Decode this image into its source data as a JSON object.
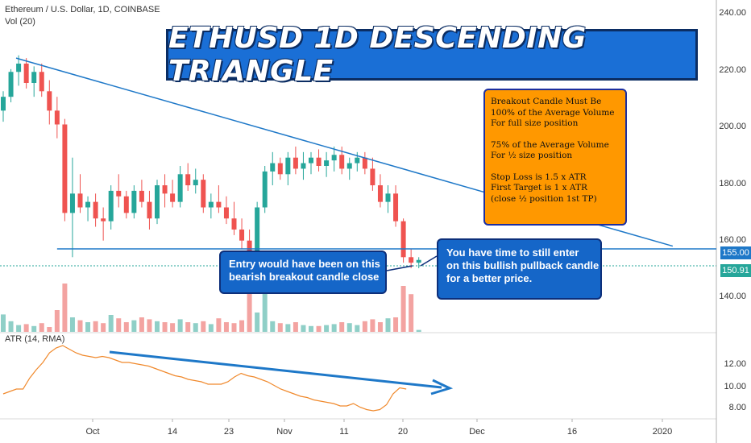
{
  "header": {
    "symbol_line": "Ethereum / U.S. Dollar, 1D, COINBASE",
    "volume_label": "Vol (20)"
  },
  "banner": {
    "title": "ETHUSD 1D DESCENDING TRIANGLE"
  },
  "note_orange": {
    "lines_a": [
      "Breakout Candle Must Be",
      "100% of the Average Volume",
      "For full size position"
    ],
    "lines_b": [
      "75% of the Average Volume",
      "For ½ size position"
    ],
    "lines_c": [
      "Stop Loss is 1.5 x ATR",
      "First Target is 1 x ATR",
      "(close ½ position 1st TP)"
    ]
  },
  "note_entry": {
    "lines": [
      "Entry would have been on this",
      "bearish breakout candle close"
    ]
  },
  "note_pullback": {
    "lines": [
      "You have time to still enter",
      "on this bullish pullback candle",
      "for a better price."
    ]
  },
  "atr": {
    "title": "ATR (14, RMA)",
    "y_ticks": [
      "12.00",
      "10.00",
      "8.00"
    ],
    "values": [
      9.2,
      9.4,
      9.6,
      9.6,
      10.5,
      11.2,
      11.8,
      12.6,
      13.0,
      13.2,
      12.9,
      12.6,
      12.4,
      12.3,
      12.2,
      12.3,
      12.2,
      12.0,
      11.8,
      11.8,
      11.7,
      11.6,
      11.5,
      11.3,
      11.1,
      10.9,
      10.7,
      10.6,
      10.4,
      10.3,
      10.2,
      10.0,
      10.0,
      10.0,
      10.2,
      10.6,
      10.9,
      10.7,
      10.6,
      10.4,
      10.2,
      9.9,
      9.6,
      9.4,
      9.2,
      9.0,
      8.9,
      8.7,
      8.6,
      8.5,
      8.4,
      8.2,
      8.2,
      8.4,
      8.1,
      7.9,
      7.8,
      7.9,
      8.3,
      9.2,
      9.7,
      9.6
    ]
  },
  "axis": {
    "y_ticks": [
      "240.00",
      "220.00",
      "200.00",
      "180.00",
      "160.00",
      "140.00"
    ],
    "x_ticks": [
      "Oct",
      "14",
      "23",
      "Nov",
      "11",
      "20",
      "Dec",
      "16",
      "2020"
    ]
  },
  "price_tags": {
    "resistance": "155.00",
    "last": "150.91"
  },
  "colors": {
    "up": "#26a69a",
    "down": "#ef5350",
    "vol_up": "#8fcfc7",
    "vol_down": "#f3a3a1",
    "line": "#1e78c8",
    "atr": "#f0892c"
  },
  "chart_data": {
    "type": "candlestick",
    "ylim": [
      125,
      245
    ],
    "ohlc": [
      [
        205,
        212,
        201,
        210
      ],
      [
        210,
        220,
        208,
        219
      ],
      [
        219,
        225,
        214,
        222
      ],
      [
        222,
        224,
        213,
        215
      ],
      [
        215,
        221,
        210,
        219
      ],
      [
        219,
        222,
        210,
        212
      ],
      [
        212,
        216,
        200,
        205
      ],
      [
        205,
        210,
        195,
        200
      ],
      [
        200,
        202,
        165,
        168
      ],
      [
        168,
        188,
        152,
        175
      ],
      [
        175,
        182,
        168,
        170
      ],
      [
        170,
        174,
        165,
        172
      ],
      [
        172,
        175,
        163,
        166
      ],
      [
        166,
        170,
        158,
        165
      ],
      [
        165,
        178,
        162,
        176
      ],
      [
        176,
        182,
        170,
        174
      ],
      [
        174,
        176,
        166,
        168
      ],
      [
        168,
        178,
        166,
        176
      ],
      [
        176,
        180,
        170,
        172
      ],
      [
        172,
        176,
        162,
        166
      ],
      [
        166,
        180,
        164,
        178
      ],
      [
        178,
        182,
        170,
        175
      ],
      [
        175,
        180,
        170,
        172
      ],
      [
        172,
        185,
        170,
        182
      ],
      [
        182,
        186,
        176,
        178
      ],
      [
        178,
        184,
        175,
        180
      ],
      [
        180,
        182,
        168,
        170
      ],
      [
        170,
        175,
        166,
        172
      ],
      [
        172,
        178,
        168,
        170
      ],
      [
        170,
        174,
        164,
        166
      ],
      [
        166,
        172,
        160,
        162
      ],
      [
        162,
        166,
        155,
        158
      ],
      [
        158,
        162,
        145,
        150
      ],
      [
        150,
        172,
        147,
        170
      ],
      [
        170,
        185,
        168,
        183
      ],
      [
        183,
        190,
        178,
        186
      ],
      [
        186,
        188,
        180,
        182
      ],
      [
        182,
        190,
        178,
        188
      ],
      [
        188,
        192,
        182,
        184
      ],
      [
        184,
        190,
        180,
        186
      ],
      [
        186,
        190,
        182,
        188
      ],
      [
        188,
        191,
        183,
        185
      ],
      [
        185,
        190,
        181,
        187
      ],
      [
        187,
        192,
        183,
        189
      ],
      [
        189,
        192,
        182,
        184
      ],
      [
        184,
        188,
        180,
        186
      ],
      [
        186,
        190,
        183,
        188
      ],
      [
        188,
        190,
        182,
        184
      ],
      [
        184,
        188,
        176,
        178
      ],
      [
        178,
        182,
        170,
        172
      ],
      [
        172,
        178,
        168,
        175
      ],
      [
        175,
        178,
        163,
        165
      ],
      [
        165,
        166,
        150,
        152
      ],
      [
        152,
        155,
        148,
        150
      ],
      [
        150,
        152,
        148,
        151
      ]
    ],
    "volume": [
      36,
      22,
      14,
      16,
      12,
      18,
      10,
      45,
      100,
      30,
      24,
      20,
      22,
      18,
      35,
      28,
      20,
      24,
      30,
      26,
      22,
      20,
      18,
      26,
      20,
      18,
      22,
      16,
      28,
      20,
      18,
      24,
      95,
      40,
      85,
      22,
      18,
      16,
      20,
      14,
      12,
      12,
      14,
      16,
      20,
      18,
      14,
      22,
      26,
      20,
      28,
      30,
      95,
      78,
      4
    ],
    "resistance_line": {
      "from": [
        0,
        224
      ],
      "to": [
        87,
        156
      ]
    },
    "support_line": {
      "value": 155
    }
  }
}
